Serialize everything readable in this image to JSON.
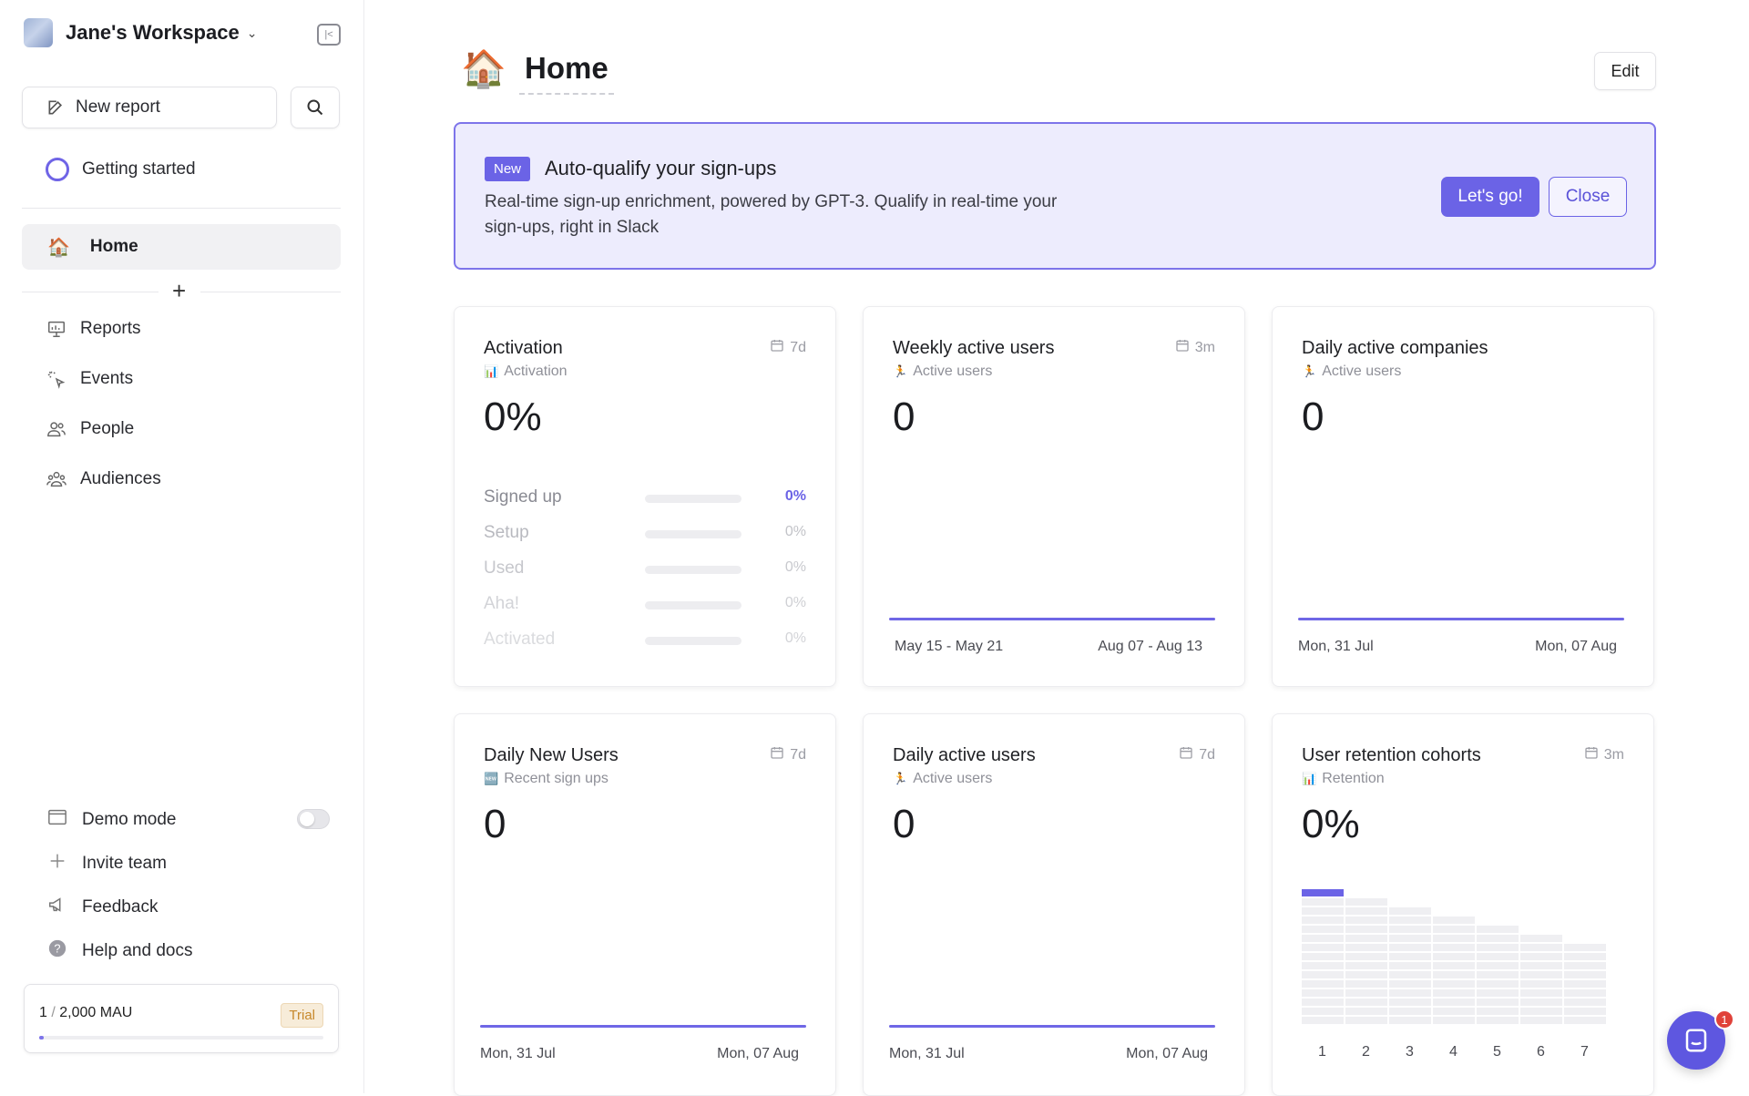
{
  "workspace": {
    "name": "Jane's Workspace",
    "caret": "⌄"
  },
  "sidebar": {
    "new_report_label": "New report",
    "getting_started_label": "Getting started",
    "home_label": "Home",
    "home_icon": "🏠",
    "nav": [
      {
        "label": "Reports",
        "icon": "reports-icon"
      },
      {
        "label": "Events",
        "icon": "events-icon"
      },
      {
        "label": "People",
        "icon": "people-icon"
      },
      {
        "label": "Audiences",
        "icon": "audiences-icon"
      }
    ],
    "footer": [
      {
        "label": "Demo mode",
        "icon": "window-icon"
      },
      {
        "label": "Invite team",
        "icon": "plus-icon"
      },
      {
        "label": "Feedback",
        "icon": "megaphone-icon"
      },
      {
        "label": "Help and docs",
        "icon": "question-icon"
      }
    ],
    "demo_mode_enabled": false,
    "mau": {
      "used": "1",
      "separator": "/",
      "limit": "2,000 MAU",
      "badge": "Trial",
      "usage_fraction": 0.0005
    }
  },
  "page": {
    "icon": "🏠",
    "title": "Home",
    "edit_label": "Edit"
  },
  "banner": {
    "badge": "New",
    "title": "Auto-qualify your sign-ups",
    "description": "Real-time sign-up enrichment, powered by GPT-3. Qualify in real-time your sign-ups, right in Slack",
    "primary_label": "Let's go!",
    "secondary_label": "Close"
  },
  "cards": {
    "activation": {
      "title": "Activation",
      "range": "7d",
      "sub_icon": "📊",
      "sub": "Activation",
      "value": "0%",
      "funnel": [
        {
          "label": "Signed up",
          "pct": "0%"
        },
        {
          "label": "Setup",
          "pct": "0%"
        },
        {
          "label": "Used",
          "pct": "0%"
        },
        {
          "label": "Aha!",
          "pct": "0%"
        },
        {
          "label": "Activated",
          "pct": "0%"
        }
      ]
    },
    "weekly_active": {
      "title": "Weekly active users",
      "range": "3m",
      "sub_icon": "🏃",
      "sub": "Active users",
      "value": "0",
      "x_start": "May 15 - May 21",
      "x_end": "Aug 07 - Aug 13"
    },
    "daily_companies": {
      "title": "Daily active companies",
      "sub_icon": "🏃",
      "sub": "Active users",
      "value": "0",
      "x_start": "Mon, 31 Jul",
      "x_end": "Mon, 07 Aug"
    },
    "daily_new": {
      "title": "Daily New Users",
      "range": "7d",
      "sub_icon": "🆕",
      "sub": "Recent sign ups",
      "value": "0",
      "x_start": "Mon, 31 Jul",
      "x_end": "Mon, 07 Aug"
    },
    "daily_active": {
      "title": "Daily active users",
      "range": "7d",
      "sub_icon": "🏃",
      "sub": "Active users",
      "value": "0",
      "x_start": "Mon, 31 Jul",
      "x_end": "Mon, 07 Aug"
    },
    "retention": {
      "title": "User retention cohorts",
      "range": "3m",
      "sub_icon": "📊",
      "sub": "Retention",
      "value": "0%",
      "x_labels": [
        "1",
        "2",
        "3",
        "4",
        "5",
        "6",
        "7"
      ]
    }
  },
  "chat": {
    "badge": "1"
  },
  "colors": {
    "accent": "#6b63e6",
    "banner_bg": "#edecfd",
    "trial": "#c7882a"
  }
}
